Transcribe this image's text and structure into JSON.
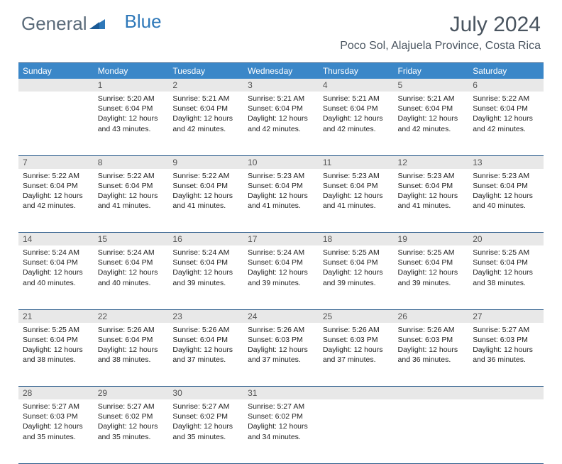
{
  "logo": {
    "text1": "General",
    "text2": "Blue"
  },
  "title": "July 2024",
  "location": "Poco Sol, Alajuela Province, Costa Rica",
  "colors": {
    "header_bg": "#3b87c8",
    "header_border": "#2a5a8a",
    "daynum_bg": "#e8e8e8",
    "logo_gray": "#5a6b7a",
    "logo_blue": "#2e78b9",
    "text": "#333333"
  },
  "weekdays": [
    "Sunday",
    "Monday",
    "Tuesday",
    "Wednesday",
    "Thursday",
    "Friday",
    "Saturday"
  ],
  "weeks": [
    {
      "nums": [
        "",
        "1",
        "2",
        "3",
        "4",
        "5",
        "6"
      ],
      "cells": [
        null,
        {
          "sunrise": "5:20 AM",
          "sunset": "6:04 PM",
          "daylight": "12 hours and 43 minutes."
        },
        {
          "sunrise": "5:21 AM",
          "sunset": "6:04 PM",
          "daylight": "12 hours and 42 minutes."
        },
        {
          "sunrise": "5:21 AM",
          "sunset": "6:04 PM",
          "daylight": "12 hours and 42 minutes."
        },
        {
          "sunrise": "5:21 AM",
          "sunset": "6:04 PM",
          "daylight": "12 hours and 42 minutes."
        },
        {
          "sunrise": "5:21 AM",
          "sunset": "6:04 PM",
          "daylight": "12 hours and 42 minutes."
        },
        {
          "sunrise": "5:22 AM",
          "sunset": "6:04 PM",
          "daylight": "12 hours and 42 minutes."
        }
      ]
    },
    {
      "nums": [
        "7",
        "8",
        "9",
        "10",
        "11",
        "12",
        "13"
      ],
      "cells": [
        {
          "sunrise": "5:22 AM",
          "sunset": "6:04 PM",
          "daylight": "12 hours and 42 minutes."
        },
        {
          "sunrise": "5:22 AM",
          "sunset": "6:04 PM",
          "daylight": "12 hours and 41 minutes."
        },
        {
          "sunrise": "5:22 AM",
          "sunset": "6:04 PM",
          "daylight": "12 hours and 41 minutes."
        },
        {
          "sunrise": "5:23 AM",
          "sunset": "6:04 PM",
          "daylight": "12 hours and 41 minutes."
        },
        {
          "sunrise": "5:23 AM",
          "sunset": "6:04 PM",
          "daylight": "12 hours and 41 minutes."
        },
        {
          "sunrise": "5:23 AM",
          "sunset": "6:04 PM",
          "daylight": "12 hours and 41 minutes."
        },
        {
          "sunrise": "5:23 AM",
          "sunset": "6:04 PM",
          "daylight": "12 hours and 40 minutes."
        }
      ]
    },
    {
      "nums": [
        "14",
        "15",
        "16",
        "17",
        "18",
        "19",
        "20"
      ],
      "cells": [
        {
          "sunrise": "5:24 AM",
          "sunset": "6:04 PM",
          "daylight": "12 hours and 40 minutes."
        },
        {
          "sunrise": "5:24 AM",
          "sunset": "6:04 PM",
          "daylight": "12 hours and 40 minutes."
        },
        {
          "sunrise": "5:24 AM",
          "sunset": "6:04 PM",
          "daylight": "12 hours and 39 minutes."
        },
        {
          "sunrise": "5:24 AM",
          "sunset": "6:04 PM",
          "daylight": "12 hours and 39 minutes."
        },
        {
          "sunrise": "5:25 AM",
          "sunset": "6:04 PM",
          "daylight": "12 hours and 39 minutes."
        },
        {
          "sunrise": "5:25 AM",
          "sunset": "6:04 PM",
          "daylight": "12 hours and 39 minutes."
        },
        {
          "sunrise": "5:25 AM",
          "sunset": "6:04 PM",
          "daylight": "12 hours and 38 minutes."
        }
      ]
    },
    {
      "nums": [
        "21",
        "22",
        "23",
        "24",
        "25",
        "26",
        "27"
      ],
      "cells": [
        {
          "sunrise": "5:25 AM",
          "sunset": "6:04 PM",
          "daylight": "12 hours and 38 minutes."
        },
        {
          "sunrise": "5:26 AM",
          "sunset": "6:04 PM",
          "daylight": "12 hours and 38 minutes."
        },
        {
          "sunrise": "5:26 AM",
          "sunset": "6:04 PM",
          "daylight": "12 hours and 37 minutes."
        },
        {
          "sunrise": "5:26 AM",
          "sunset": "6:03 PM",
          "daylight": "12 hours and 37 minutes."
        },
        {
          "sunrise": "5:26 AM",
          "sunset": "6:03 PM",
          "daylight": "12 hours and 37 minutes."
        },
        {
          "sunrise": "5:26 AM",
          "sunset": "6:03 PM",
          "daylight": "12 hours and 36 minutes."
        },
        {
          "sunrise": "5:27 AM",
          "sunset": "6:03 PM",
          "daylight": "12 hours and 36 minutes."
        }
      ]
    },
    {
      "nums": [
        "28",
        "29",
        "30",
        "31",
        "",
        "",
        ""
      ],
      "cells": [
        {
          "sunrise": "5:27 AM",
          "sunset": "6:03 PM",
          "daylight": "12 hours and 35 minutes."
        },
        {
          "sunrise": "5:27 AM",
          "sunset": "6:02 PM",
          "daylight": "12 hours and 35 minutes."
        },
        {
          "sunrise": "5:27 AM",
          "sunset": "6:02 PM",
          "daylight": "12 hours and 35 minutes."
        },
        {
          "sunrise": "5:27 AM",
          "sunset": "6:02 PM",
          "daylight": "12 hours and 34 minutes."
        },
        null,
        null,
        null
      ]
    }
  ],
  "labels": {
    "sunrise": "Sunrise:",
    "sunset": "Sunset:",
    "daylight": "Daylight:"
  }
}
